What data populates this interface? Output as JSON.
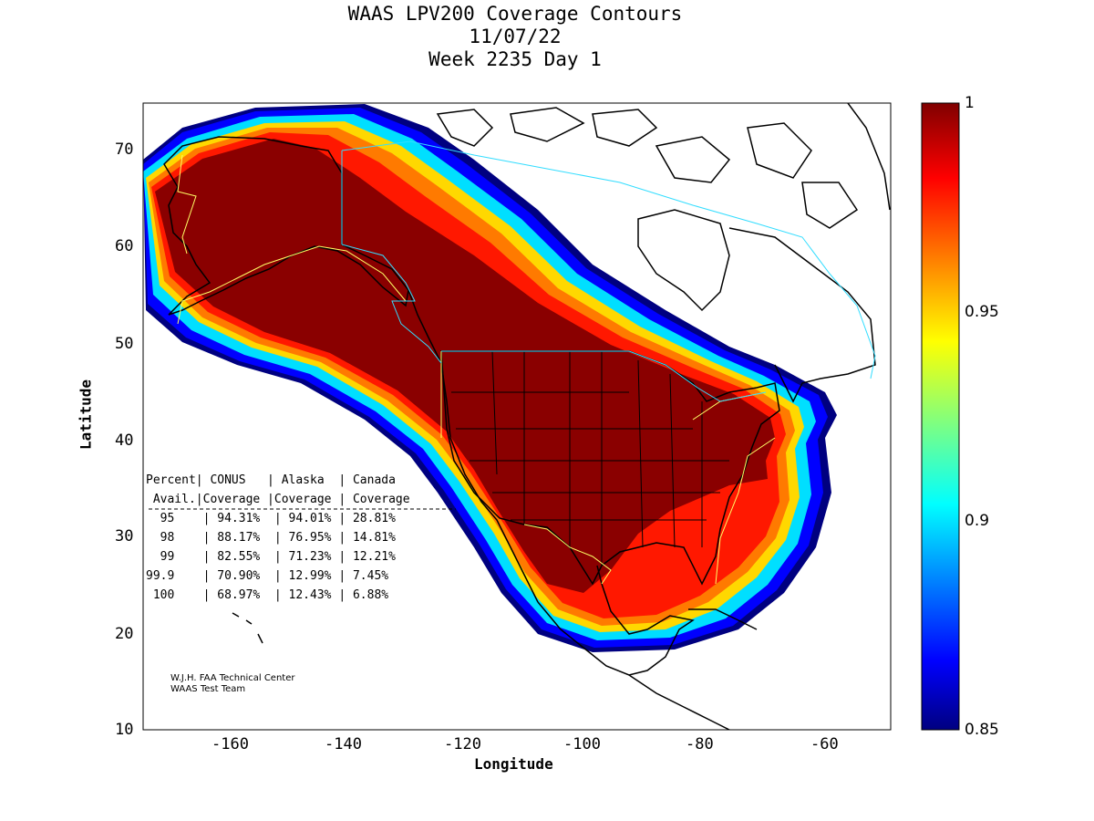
{
  "title": {
    "line1": "WAAS LPV200 Coverage Contours",
    "line2": "11/07/22",
    "line3": "Week 2235 Day 1"
  },
  "axes": {
    "xlabel": "Longitude",
    "ylabel": "Latitude",
    "xticks": [
      "-160",
      "-140",
      "-120",
      "-100",
      "-80",
      "-60"
    ],
    "yticks": [
      "70",
      "60",
      "50",
      "40",
      "30",
      "20",
      "10"
    ]
  },
  "colorbar": {
    "ticks": [
      "1",
      "0.95",
      "0.9",
      "0.85"
    ],
    "range": [
      0.85,
      1.0
    ],
    "colormap": "jet"
  },
  "stats_table": {
    "header1": "Percent| CONUS   | Alaska  | Canada",
    "header2": " Avail.|Coverage |Coverage | Coverage",
    "rows": [
      "  95    | 94.31%  | 94.01% | 28.81%",
      "  98    | 88.17%  | 76.95% | 14.81%",
      "  99    | 82.55%  | 71.23% | 12.21%",
      "99.9    | 70.90%  | 12.99% | 7.45%",
      " 100    | 68.97%  | 12.43% | 6.88%"
    ]
  },
  "credit": {
    "line1": "W.J.H. FAA Technical Center",
    "line2": "WAAS Test Team"
  },
  "colors": {
    "high": "#800000",
    "red": "#ff0000",
    "orange": "#ff8000",
    "yellow": "#ffff00",
    "cyan": "#00ffff",
    "blue": "#0000ff",
    "navy": "#000080",
    "waas_boundary": "#ffff66",
    "canada_boundary": "#33ddff"
  }
}
